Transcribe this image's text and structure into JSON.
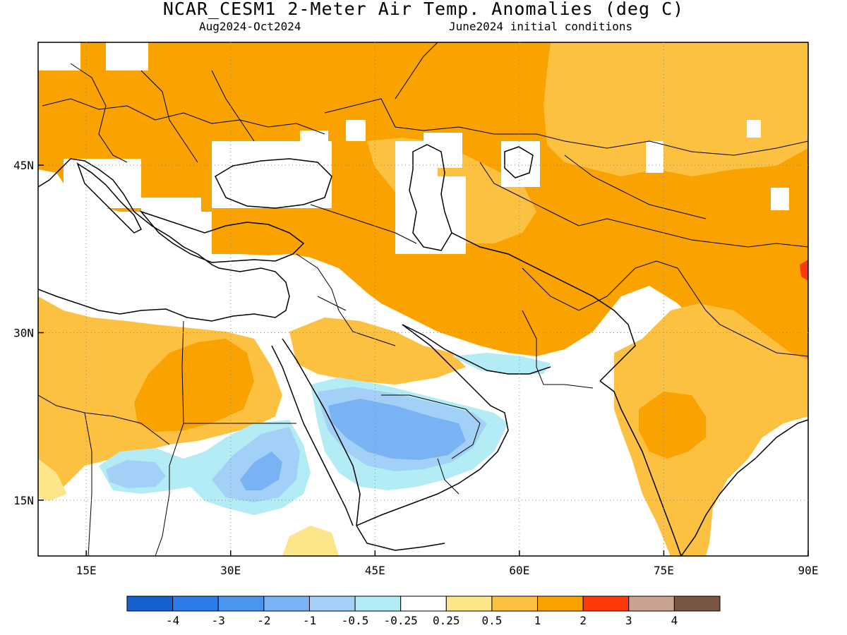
{
  "title": "NCAR_CESM1 2-Meter Air Temp. Anomalies (deg C)",
  "subtitle_left": "Aug2024-Oct2024",
  "subtitle_right": "June2024 initial conditions",
  "map": {
    "lon_range": [
      10,
      90
    ],
    "lat_range": [
      10,
      56
    ],
    "lon_ticks": [
      {
        "v": 15,
        "label": "15E"
      },
      {
        "v": 30,
        "label": "30E"
      },
      {
        "v": 45,
        "label": "45E"
      },
      {
        "v": 60,
        "label": "60E"
      },
      {
        "v": 75,
        "label": "75E"
      },
      {
        "v": 90,
        "label": "90E"
      }
    ],
    "lat_ticks": [
      {
        "v": 45,
        "label": "45N"
      },
      {
        "v": 30,
        "label": "30N"
      },
      {
        "v": 15,
        "label": "15N"
      }
    ],
    "grid": "dotted"
  },
  "colorbar": {
    "colors": [
      "#1561d0",
      "#2e7bec",
      "#4a95f0",
      "#79b3f3",
      "#a3d0f7",
      "#b3ecf4",
      "#ffffff",
      "#fde58a",
      "#fcc141",
      "#f9a200",
      "#ff3a0a",
      "#c9a292",
      "#7a5444"
    ],
    "labels": [
      "-4",
      "-3",
      "-2",
      "-1",
      "-0.5",
      "-0.25",
      "0.25",
      "0.5",
      "1",
      "2",
      "3",
      "4"
    ]
  },
  "anomaly_colors": {
    "orange": "#f9a200",
    "light_orange": "#fcc141",
    "yellow": "#fde58a",
    "light_cyan": "#b3ecf4",
    "pale_blue": "#a3d0f7",
    "light_blue": "#79b3f3",
    "red": "#ff3a0a"
  }
}
